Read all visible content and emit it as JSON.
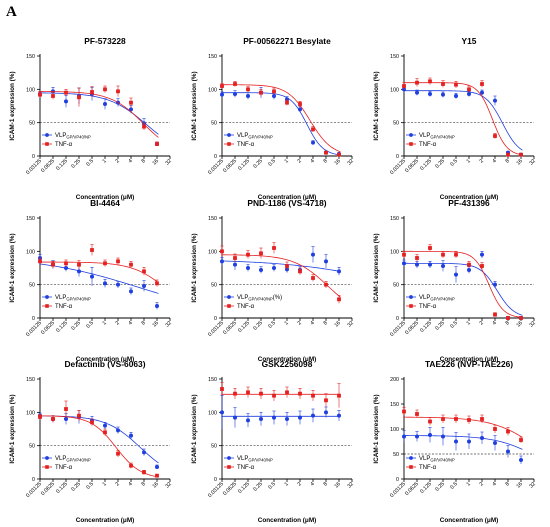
{
  "panel_label": "A",
  "colors": {
    "vlp": "#1f3fe0",
    "tnf": "#e52020",
    "axis": "#000000",
    "ref": "#444444"
  },
  "chart_data": [
    {
      "type": "scatter",
      "title": "PF-573228",
      "xlabel": "Concentration (μM)",
      "ylabel": "ICAM-1 expression (%)",
      "x_scale": "log2",
      "xticks": [
        "0.03125",
        "0.0625",
        "0.125",
        "0.25",
        "0.5",
        "1",
        "2",
        "4",
        "8",
        "16",
        "32"
      ],
      "yticks": [
        0,
        50,
        100,
        150
      ],
      "ylim": [
        0,
        150
      ],
      "reference_line": 50,
      "legend": "bottom-left",
      "series": [
        {
          "name": "VLP",
          "name_sub": "GP/VP40/NP",
          "marker": "circle",
          "x": [
            0.03125,
            0.0625,
            0.125,
            0.25,
            0.5,
            1,
            2,
            4,
            8,
            16
          ],
          "y": [
            93,
            97,
            82,
            90,
            93,
            78,
            80,
            70,
            49,
            18
          ],
          "err": [
            4,
            6,
            9,
            12,
            10,
            8,
            6,
            6,
            7,
            3
          ],
          "fit": {
            "top": 95,
            "bottom": 0,
            "ec50": 9,
            "hill": 1
          }
        },
        {
          "name": "TNF-α",
          "marker": "square",
          "x": [
            0.03125,
            0.0625,
            0.125,
            0.25,
            0.5,
            1,
            2,
            4,
            8,
            16
          ],
          "y": [
            92,
            90,
            95,
            88,
            96,
            100,
            97,
            80,
            44,
            18
          ],
          "err": [
            4,
            5,
            5,
            14,
            8,
            5,
            8,
            7,
            5,
            3
          ],
          "fit": {
            "top": 97,
            "bottom": 0,
            "ec50": 7.8,
            "hill": 1.15
          }
        }
      ]
    },
    {
      "type": "scatter",
      "title": "PF-00562271 Besylate",
      "xlabel": "Concentration (μM)",
      "ylabel": "ICAM-1 expression (%)",
      "x_scale": "log2",
      "xticks": [
        "0.03125",
        "0.0625",
        "0.125",
        "0.25",
        "0.5",
        "1",
        "2",
        "4",
        "8",
        "16",
        "32"
      ],
      "yticks": [
        0,
        50,
        100,
        150
      ],
      "ylim": [
        0,
        150
      ],
      "reference_line": 50,
      "legend": "bottom-left",
      "series": [
        {
          "name": "VLP",
          "name_sub": "GP/VP40/NP",
          "marker": "circle",
          "x": [
            0.03125,
            0.0625,
            0.125,
            0.25,
            0.5,
            1,
            2,
            4,
            8,
            16
          ],
          "y": [
            92,
            93,
            90,
            95,
            90,
            85,
            70,
            20,
            5,
            3
          ],
          "err": [
            4,
            5,
            5,
            8,
            5,
            4,
            4,
            3,
            2,
            2
          ],
          "fit": {
            "top": 95,
            "bottom": 0,
            "ec50": 2.9,
            "hill": 2.3
          }
        },
        {
          "name": "TNF-α",
          "marker": "square",
          "x": [
            0.03125,
            0.0625,
            0.125,
            0.25,
            0.5,
            1,
            2,
            4,
            8,
            16
          ],
          "y": [
            105,
            108,
            100,
            95,
            97,
            80,
            78,
            40,
            5,
            2
          ],
          "err": [
            4,
            4,
            4,
            5,
            5,
            4,
            4,
            4,
            2,
            2
          ],
          "fit": {
            "top": 107,
            "bottom": 0,
            "ec50": 3.4,
            "hill": 1.7
          }
        }
      ]
    },
    {
      "type": "scatter",
      "title": "Y15",
      "xlabel": "Concentration (μM)",
      "ylabel": "ICAM-1 expression (%)",
      "x_scale": "log2",
      "xticks": [
        "0.03125",
        "0.0625",
        "0.125",
        "0.25",
        "0.5",
        "1",
        "2",
        "4",
        "8",
        "16",
        "32"
      ],
      "yticks": [
        0,
        50,
        100,
        150
      ],
      "ylim": [
        0,
        150
      ],
      "reference_line": 50,
      "legend": "bottom-left",
      "series": [
        {
          "name": "VLP",
          "name_sub": "GP/VP40/NP",
          "marker": "circle",
          "x": [
            0.03125,
            0.0625,
            0.125,
            0.25,
            0.5,
            1,
            2,
            4,
            8,
            16
          ],
          "y": [
            100,
            95,
            93,
            92,
            90,
            93,
            95,
            83,
            5,
            2
          ],
          "err": [
            5,
            4,
            4,
            4,
            4,
            4,
            4,
            7,
            2,
            2
          ],
          "fit": {
            "top": 98,
            "bottom": 0,
            "ec50": 6,
            "hill": 2.2
          }
        },
        {
          "name": "TNF-α",
          "marker": "square",
          "x": [
            0.03125,
            0.0625,
            0.125,
            0.25,
            0.5,
            1,
            2,
            4,
            8,
            16
          ],
          "y": [
            105,
            110,
            112,
            108,
            107,
            100,
            108,
            30,
            2,
            2
          ],
          "err": [
            5,
            6,
            5,
            5,
            5,
            5,
            5,
            4,
            2,
            2
          ],
          "fit": {
            "top": 110,
            "bottom": 0,
            "ec50": 3.5,
            "hill": 2.6
          }
        }
      ]
    },
    {
      "type": "scatter",
      "title": "BI-4464",
      "xlabel": "Concentration (μM)",
      "ylabel": "ICAM-1 expression (%)",
      "x_scale": "log2",
      "xticks": [
        "0.03125",
        "0.0625",
        "0.125",
        "0.25",
        "0.5",
        "1",
        "2",
        "4",
        "8",
        "16",
        "32"
      ],
      "yticks": [
        0,
        50,
        100,
        150
      ],
      "ylim": [
        0,
        150
      ],
      "reference_line": 50,
      "legend": "bottom-left",
      "series": [
        {
          "name": "VLP",
          "name_sub": "GP/VP40/NP",
          "marker": "circle",
          "x": [
            0.03125,
            0.0625,
            0.125,
            0.25,
            0.5,
            1,
            2,
            4,
            8,
            16
          ],
          "y": [
            90,
            80,
            75,
            70,
            62,
            52,
            50,
            40,
            48,
            18
          ],
          "err": [
            5,
            6,
            5,
            8,
            14,
            6,
            5,
            5,
            8,
            5
          ],
          "fit": {
            "top": 92,
            "bottom": 0,
            "ec50": 6,
            "hill": 0.38
          }
        },
        {
          "name": "TNF-α",
          "marker": "square",
          "x": [
            0.03125,
            0.0625,
            0.125,
            0.25,
            0.5,
            1,
            2,
            4,
            8,
            16
          ],
          "y": [
            85,
            80,
            82,
            80,
            102,
            82,
            85,
            80,
            70,
            52
          ],
          "err": [
            5,
            5,
            5,
            6,
            8,
            5,
            5,
            5,
            6,
            5
          ],
          "fit": {
            "top": 84,
            "bottom": 0,
            "ec50": 28,
            "hill": 1.1
          }
        }
      ]
    },
    {
      "type": "scatter",
      "title": "PND-1186 (VS-4718)",
      "xlabel": "Concentration (μM)",
      "ylabel": "ICAM-1 expression (%)",
      "x_scale": "log2",
      "xticks": [
        "0.03125",
        "0.0625",
        "0.125",
        "0.25",
        "0.5",
        "1",
        "2",
        "4",
        "8",
        "16",
        "32"
      ],
      "yticks": [
        0,
        50,
        100,
        150
      ],
      "ylim": [
        0,
        150
      ],
      "reference_line": 50,
      "legend": "bottom-left",
      "series": [
        {
          "name": "VLP",
          "name_sub": "GP/VP40/NP",
          "name_suffix": "(%)",
          "marker": "circle",
          "x": [
            0.03125,
            0.0625,
            0.125,
            0.25,
            0.5,
            1,
            2,
            4,
            8,
            16
          ],
          "y": [
            85,
            80,
            75,
            72,
            75,
            73,
            72,
            95,
            85,
            70
          ],
          "err": [
            6,
            8,
            5,
            5,
            5,
            5,
            5,
            12,
            10,
            6
          ],
          "fit": {
            "top": 88,
            "bottom": 0,
            "ec50": 800,
            "hill": 0.35
          }
        },
        {
          "name": "TNF-α",
          "marker": "square",
          "x": [
            0.03125,
            0.0625,
            0.125,
            0.25,
            0.5,
            1,
            2,
            4,
            8,
            16
          ],
          "y": [
            100,
            90,
            95,
            97,
            105,
            78,
            70,
            60,
            50,
            28
          ],
          "err": [
            8,
            6,
            6,
            8,
            8,
            6,
            5,
            5,
            5,
            6
          ],
          "fit": {
            "top": 95,
            "bottom": 0,
            "ec50": 9,
            "hill": 1.1
          }
        }
      ]
    },
    {
      "type": "scatter",
      "title": "PF-431396",
      "xlabel": "Concentration (μM)",
      "ylabel": "ICAM-1 expression (%)",
      "x_scale": "log2",
      "xticks": [
        "0.03125",
        "0.0625",
        "0.125",
        "0.25",
        "0.5",
        "1",
        "2",
        "4",
        "8",
        "16",
        "32"
      ],
      "yticks": [
        0,
        50,
        100,
        150
      ],
      "ylim": [
        0,
        150
      ],
      "reference_line": 50,
      "legend": "bottom-left",
      "series": [
        {
          "name": "VLP",
          "name_sub": "GP/VP40/NP",
          "marker": "circle",
          "x": [
            0.03125,
            0.0625,
            0.125,
            0.25,
            0.5,
            1,
            2,
            4,
            8,
            16
          ],
          "y": [
            82,
            80,
            80,
            78,
            65,
            72,
            95,
            50,
            0,
            0
          ],
          "err": [
            5,
            5,
            5,
            8,
            12,
            5,
            5,
            5,
            2,
            2
          ],
          "fit": {
            "top": 82,
            "bottom": 0,
            "ec50": 4.5,
            "hill": 2.2
          }
        },
        {
          "name": "TNF-α",
          "marker": "square",
          "x": [
            0.03125,
            0.0625,
            0.125,
            0.25,
            0.5,
            1,
            2,
            4,
            8,
            16
          ],
          "y": [
            95,
            90,
            105,
            95,
            95,
            80,
            78,
            5,
            0,
            0
          ],
          "err": [
            5,
            5,
            5,
            5,
            5,
            5,
            5,
            3,
            2,
            2
          ],
          "fit": {
            "top": 100,
            "bottom": 0,
            "ec50": 2.9,
            "hill": 2.6
          }
        }
      ]
    },
    {
      "type": "scatter",
      "title": "Defactinib (VS-6063)",
      "xlabel": "Concentration (μM)",
      "ylabel": "ICAM-1 expression (%)",
      "x_scale": "log2",
      "xticks": [
        "0.03125",
        "0.0625",
        "0.125",
        "0.25",
        "0.5",
        "1",
        "2",
        "4",
        "8",
        "16",
        "32"
      ],
      "yticks": [
        0,
        50,
        100,
        150
      ],
      "ylim": [
        0,
        150
      ],
      "reference_line": 50,
      "legend": "bottom-left",
      "series": [
        {
          "name": "VLP",
          "name_sub": "GP/VP40/NP",
          "marker": "circle",
          "x": [
            0.03125,
            0.0625,
            0.125,
            0.25,
            0.5,
            1,
            2,
            4,
            8,
            16
          ],
          "y": [
            95,
            90,
            90,
            93,
            88,
            80,
            73,
            65,
            40,
            18
          ],
          "err": [
            4,
            5,
            8,
            10,
            6,
            5,
            5,
            5,
            5,
            3
          ],
          "fit": {
            "top": 95,
            "bottom": 0,
            "ec50": 6.5,
            "hill": 1.1
          }
        },
        {
          "name": "TNF-α",
          "marker": "square",
          "x": [
            0.03125,
            0.0625,
            0.125,
            0.25,
            0.5,
            1,
            2,
            4,
            8,
            16
          ],
          "y": [
            93,
            90,
            105,
            95,
            85,
            70,
            38,
            20,
            10,
            5
          ],
          "err": [
            4,
            5,
            12,
            8,
            5,
            5,
            5,
            4,
            3,
            2
          ],
          "fit": {
            "top": 95,
            "bottom": 0,
            "ec50": 1.8,
            "hill": 1.5
          }
        }
      ]
    },
    {
      "type": "scatter",
      "title": "GSK2256098",
      "xlabel": "Concentration (μM)",
      "ylabel": "ICAM-1 expression (%)",
      "x_scale": "log2",
      "xticks": [
        "0.03125",
        "0.0625",
        "0.125",
        "0.25",
        "0.5",
        "1",
        "2",
        "4",
        "8",
        "16",
        "32"
      ],
      "yticks": [
        0,
        50,
        100,
        150
      ],
      "ylim": [
        0,
        150
      ],
      "reference_line": 50,
      "legend": "bottom-left",
      "series": [
        {
          "name": "VLP",
          "name_sub": "GP/VP40/NP",
          "marker": "circle",
          "x": [
            0.03125,
            0.0625,
            0.125,
            0.25,
            0.5,
            1,
            2,
            4,
            8,
            16
          ],
          "y": [
            100,
            92,
            88,
            90,
            92,
            90,
            92,
            95,
            100,
            95
          ],
          "err": [
            25,
            15,
            10,
            10,
            10,
            10,
            10,
            10,
            8,
            8
          ],
          "fit": {
            "top": 94,
            "bottom": 94,
            "ec50": 1,
            "hill": 1
          }
        },
        {
          "name": "TNF-α",
          "marker": "square",
          "x": [
            0.03125,
            0.0625,
            0.125,
            0.25,
            0.5,
            1,
            2,
            4,
            8,
            16
          ],
          "y": [
            135,
            128,
            130,
            128,
            125,
            130,
            128,
            125,
            118,
            125
          ],
          "err": [
            10,
            8,
            8,
            8,
            8,
            8,
            8,
            8,
            10,
            18
          ],
          "fit": {
            "top": 127,
            "bottom": 127,
            "ec50": 1,
            "hill": 1
          }
        }
      ]
    },
    {
      "type": "scatter",
      "title": "TAE226 (NVP-TAE226)",
      "xlabel": "Concentration (μM)",
      "ylabel": "ICAM-1 expression (%)",
      "x_scale": "log2",
      "xticks": [
        "0.03125",
        "0.0625",
        "0.125",
        "0.25",
        "0.5",
        "1",
        "2",
        "4",
        "8",
        "16",
        "32"
      ],
      "yticks": [
        0,
        50,
        100,
        150,
        200
      ],
      "ylim": [
        0,
        200
      ],
      "reference_line": 50,
      "legend": "bottom-left",
      "series": [
        {
          "name": "VLP",
          "name_sub": "GP/VP40/NP",
          "marker": "circle",
          "x": [
            0.03125,
            0.0625,
            0.125,
            0.25,
            0.5,
            1,
            2,
            4,
            8,
            16
          ],
          "y": [
            85,
            85,
            88,
            85,
            75,
            75,
            82,
            72,
            55,
            38
          ],
          "err": [
            12,
            10,
            15,
            18,
            18,
            15,
            12,
            15,
            12,
            8
          ],
          "fit": {
            "top": 87,
            "bottom": 0,
            "ec50": 40,
            "hill": 0.9
          }
        },
        {
          "name": "TNF-α",
          "marker": "square",
          "x": [
            0.03125,
            0.0625,
            0.125,
            0.25,
            0.5,
            1,
            2,
            4,
            8,
            16
          ],
          "y": [
            135,
            130,
            115,
            120,
            120,
            118,
            120,
            100,
            95,
            78
          ],
          "err": [
            8,
            8,
            8,
            8,
            8,
            8,
            8,
            8,
            8,
            6
          ],
          "fit": {
            "top": 124,
            "bottom": 0,
            "ec50": 40,
            "hill": 0.85
          }
        }
      ]
    }
  ]
}
